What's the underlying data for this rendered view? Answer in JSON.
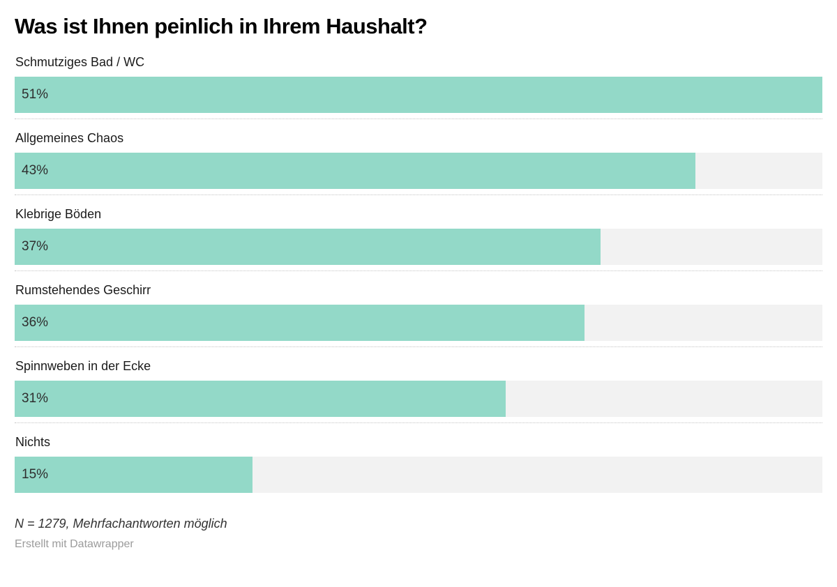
{
  "chart": {
    "title": "Was ist Ihnen peinlich in Ihrem Haushalt?",
    "note": "N = 1279, Mehrfachantworten möglich",
    "attribution": "Erstellt mit Datawrapper",
    "bar_color": "#93d9c8",
    "track_color": "#f2f2f2"
  },
  "chart_data": {
    "type": "bar",
    "orientation": "horizontal",
    "title": "Was ist Ihnen peinlich in Ihrem Haushalt?",
    "categories": [
      "Schmutziges Bad / WC",
      "Allgemeines Chaos",
      "Klebrige Böden",
      "Rumstehendes Geschirr",
      "Spinnweben in der Ecke",
      "Nichts"
    ],
    "values": [
      51,
      43,
      37,
      36,
      31,
      15
    ],
    "value_suffix": "%",
    "scale_max": 51,
    "xlabel": "",
    "ylabel": "",
    "grid": false,
    "legend": false,
    "note": "N = 1279, Mehrfachantworten möglich",
    "source": "Erstellt mit Datawrapper"
  }
}
